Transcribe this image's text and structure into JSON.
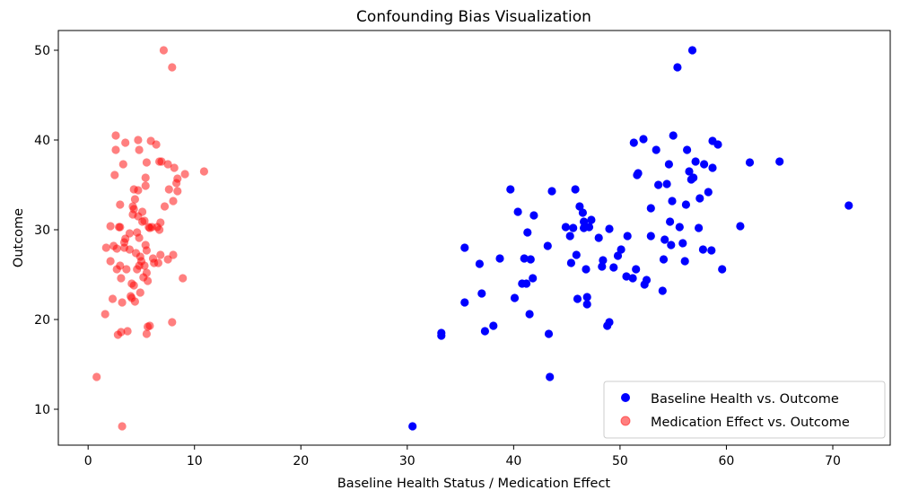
{
  "chart_data": {
    "type": "scatter",
    "title": "Confounding Bias Visualization",
    "xlabel": "Baseline Health Status / Medication Effect",
    "ylabel": "Outcome",
    "xlim": [
      -2.8,
      75.4
    ],
    "ylim": [
      6.0,
      52.2
    ],
    "xticks": [
      0,
      10,
      20,
      30,
      40,
      50,
      60,
      70
    ],
    "yticks": [
      10,
      20,
      30,
      40,
      50
    ],
    "grid": false,
    "legend_position": "bottom-right",
    "series": [
      {
        "name": "Baseline Health vs. Outcome",
        "color": "#0000ff",
        "alpha": 1.0,
        "points": [
          [
            30.5,
            8.1
          ],
          [
            33.2,
            18.2
          ],
          [
            33.2,
            18.5
          ],
          [
            35.4,
            21.9
          ],
          [
            35.4,
            28.0
          ],
          [
            36.8,
            26.2
          ],
          [
            37.0,
            22.9
          ],
          [
            37.3,
            18.7
          ],
          [
            38.1,
            19.3
          ],
          [
            38.7,
            26.8
          ],
          [
            39.7,
            34.5
          ],
          [
            40.1,
            22.4
          ],
          [
            40.4,
            32.0
          ],
          [
            40.8,
            24.0
          ],
          [
            41.0,
            26.8
          ],
          [
            41.2,
            24.0
          ],
          [
            41.3,
            29.7
          ],
          [
            41.5,
            20.6
          ],
          [
            41.6,
            26.7
          ],
          [
            41.8,
            24.6
          ],
          [
            41.9,
            31.6
          ],
          [
            43.2,
            28.2
          ],
          [
            43.3,
            18.4
          ],
          [
            43.4,
            13.6
          ],
          [
            43.6,
            34.3
          ],
          [
            44.9,
            30.3
          ],
          [
            45.3,
            29.3
          ],
          [
            45.4,
            26.3
          ],
          [
            45.6,
            30.2
          ],
          [
            45.8,
            34.5
          ],
          [
            45.9,
            27.2
          ],
          [
            46.0,
            22.3
          ],
          [
            46.2,
            32.6
          ],
          [
            46.5,
            31.9
          ],
          [
            46.6,
            30.2
          ],
          [
            46.6,
            30.9
          ],
          [
            46.8,
            25.6
          ],
          [
            46.9,
            22.5
          ],
          [
            46.9,
            21.7
          ],
          [
            47.3,
            31.1
          ],
          [
            47.1,
            30.3
          ],
          [
            48.0,
            29.1
          ],
          [
            48.3,
            25.9
          ],
          [
            48.4,
            26.6
          ],
          [
            48.8,
            19.3
          ],
          [
            49.0,
            19.7
          ],
          [
            49.0,
            30.1
          ],
          [
            49.4,
            25.8
          ],
          [
            49.8,
            27.1
          ],
          [
            50.1,
            27.8
          ],
          [
            50.6,
            24.8
          ],
          [
            50.7,
            29.3
          ],
          [
            51.2,
            24.6
          ],
          [
            51.3,
            39.7
          ],
          [
            51.5,
            25.6
          ],
          [
            51.6,
            36.1
          ],
          [
            51.7,
            36.3
          ],
          [
            52.2,
            40.1
          ],
          [
            52.3,
            23.9
          ],
          [
            52.5,
            24.4
          ],
          [
            52.9,
            32.4
          ],
          [
            52.9,
            29.3
          ],
          [
            53.4,
            38.9
          ],
          [
            53.6,
            35.0
          ],
          [
            54.0,
            23.2
          ],
          [
            54.1,
            26.7
          ],
          [
            54.2,
            28.9
          ],
          [
            54.4,
            35.1
          ],
          [
            54.6,
            37.3
          ],
          [
            54.7,
            30.9
          ],
          [
            54.8,
            28.3
          ],
          [
            54.9,
            33.2
          ],
          [
            55.0,
            40.5
          ],
          [
            55.4,
            48.1
          ],
          [
            55.6,
            30.3
          ],
          [
            55.9,
            28.5
          ],
          [
            56.1,
            26.5
          ],
          [
            56.2,
            32.8
          ],
          [
            56.3,
            38.9
          ],
          [
            56.5,
            36.5
          ],
          [
            56.7,
            35.6
          ],
          [
            56.8,
            50.0
          ],
          [
            56.9,
            35.8
          ],
          [
            57.1,
            37.6
          ],
          [
            57.4,
            30.2
          ],
          [
            57.5,
            33.5
          ],
          [
            57.8,
            27.8
          ],
          [
            57.9,
            37.3
          ],
          [
            58.3,
            34.2
          ],
          [
            58.6,
            27.7
          ],
          [
            58.7,
            39.9
          ],
          [
            58.7,
            36.9
          ],
          [
            59.2,
            39.5
          ],
          [
            59.6,
            25.6
          ],
          [
            61.3,
            30.4
          ],
          [
            62.2,
            37.5
          ],
          [
            65.0,
            37.6
          ],
          [
            71.5,
            32.7
          ]
        ]
      },
      {
        "name": "Medication Effect vs. Outcome",
        "color": "#ff0000",
        "alpha": 0.5,
        "points": [
          [
            0.8,
            13.6
          ],
          [
            1.6,
            20.6
          ],
          [
            1.7,
            28.0
          ],
          [
            2.1,
            30.4
          ],
          [
            2.1,
            26.5
          ],
          [
            2.3,
            22.3
          ],
          [
            2.4,
            28.2
          ],
          [
            2.5,
            36.1
          ],
          [
            2.6,
            40.5
          ],
          [
            2.6,
            38.9
          ],
          [
            2.7,
            27.9
          ],
          [
            2.7,
            25.6
          ],
          [
            2.8,
            18.3
          ],
          [
            2.9,
            30.3
          ],
          [
            3.0,
            32.8
          ],
          [
            3.0,
            30.3
          ],
          [
            3.0,
            26.0
          ],
          [
            3.1,
            24.6
          ],
          [
            3.1,
            18.6
          ],
          [
            3.2,
            8.1
          ],
          [
            3.2,
            21.9
          ],
          [
            3.3,
            37.3
          ],
          [
            3.4,
            28.6
          ],
          [
            3.4,
            28.0
          ],
          [
            3.5,
            39.7
          ],
          [
            3.5,
            29.0
          ],
          [
            3.6,
            25.6
          ],
          [
            3.7,
            18.7
          ],
          [
            3.9,
            27.8
          ],
          [
            3.9,
            29.6
          ],
          [
            4.0,
            22.6
          ],
          [
            4.1,
            24.0
          ],
          [
            4.1,
            22.4
          ],
          [
            4.2,
            32.6
          ],
          [
            4.2,
            31.7
          ],
          [
            4.3,
            34.5
          ],
          [
            4.3,
            32.3
          ],
          [
            4.3,
            23.8
          ],
          [
            4.4,
            22.0
          ],
          [
            4.4,
            33.4
          ],
          [
            4.5,
            27.4
          ],
          [
            4.6,
            25.6
          ],
          [
            4.6,
            29.7
          ],
          [
            4.7,
            31.5
          ],
          [
            4.7,
            34.4
          ],
          [
            4.7,
            40.0
          ],
          [
            4.8,
            26.0
          ],
          [
            4.8,
            38.9
          ],
          [
            4.8,
            29.1
          ],
          [
            4.9,
            27.0
          ],
          [
            4.9,
            23.0
          ],
          [
            5.0,
            26.5
          ],
          [
            5.1,
            32.0
          ],
          [
            5.1,
            30.9
          ],
          [
            5.2,
            24.7
          ],
          [
            5.3,
            31.0
          ],
          [
            5.3,
            26.0
          ],
          [
            5.4,
            28.3
          ],
          [
            5.4,
            35.8
          ],
          [
            5.4,
            34.9
          ],
          [
            5.5,
            37.5
          ],
          [
            5.5,
            18.4
          ],
          [
            5.5,
            25.2
          ],
          [
            5.5,
            27.7
          ],
          [
            5.6,
            24.3
          ],
          [
            5.6,
            19.2
          ],
          [
            5.7,
            30.3
          ],
          [
            5.8,
            30.2
          ],
          [
            5.8,
            19.3
          ],
          [
            5.9,
            39.9
          ],
          [
            6.0,
            30.3
          ],
          [
            6.1,
            26.8
          ],
          [
            6.2,
            26.3
          ],
          [
            6.4,
            39.5
          ],
          [
            6.5,
            30.3
          ],
          [
            6.6,
            26.3
          ],
          [
            6.7,
            37.6
          ],
          [
            6.7,
            30.0
          ],
          [
            6.8,
            27.2
          ],
          [
            6.8,
            30.8
          ],
          [
            6.9,
            37.6
          ],
          [
            7.1,
            50.0
          ],
          [
            7.2,
            32.6
          ],
          [
            7.5,
            37.3
          ],
          [
            7.5,
            26.7
          ],
          [
            7.6,
            34.5
          ],
          [
            7.9,
            48.1
          ],
          [
            7.9,
            19.7
          ],
          [
            8.0,
            33.2
          ],
          [
            8.0,
            27.2
          ],
          [
            8.1,
            36.9
          ],
          [
            8.3,
            35.2
          ],
          [
            8.4,
            35.7
          ],
          [
            8.4,
            34.3
          ],
          [
            8.9,
            24.6
          ],
          [
            9.1,
            36.2
          ],
          [
            10.9,
            36.5
          ]
        ]
      }
    ]
  }
}
